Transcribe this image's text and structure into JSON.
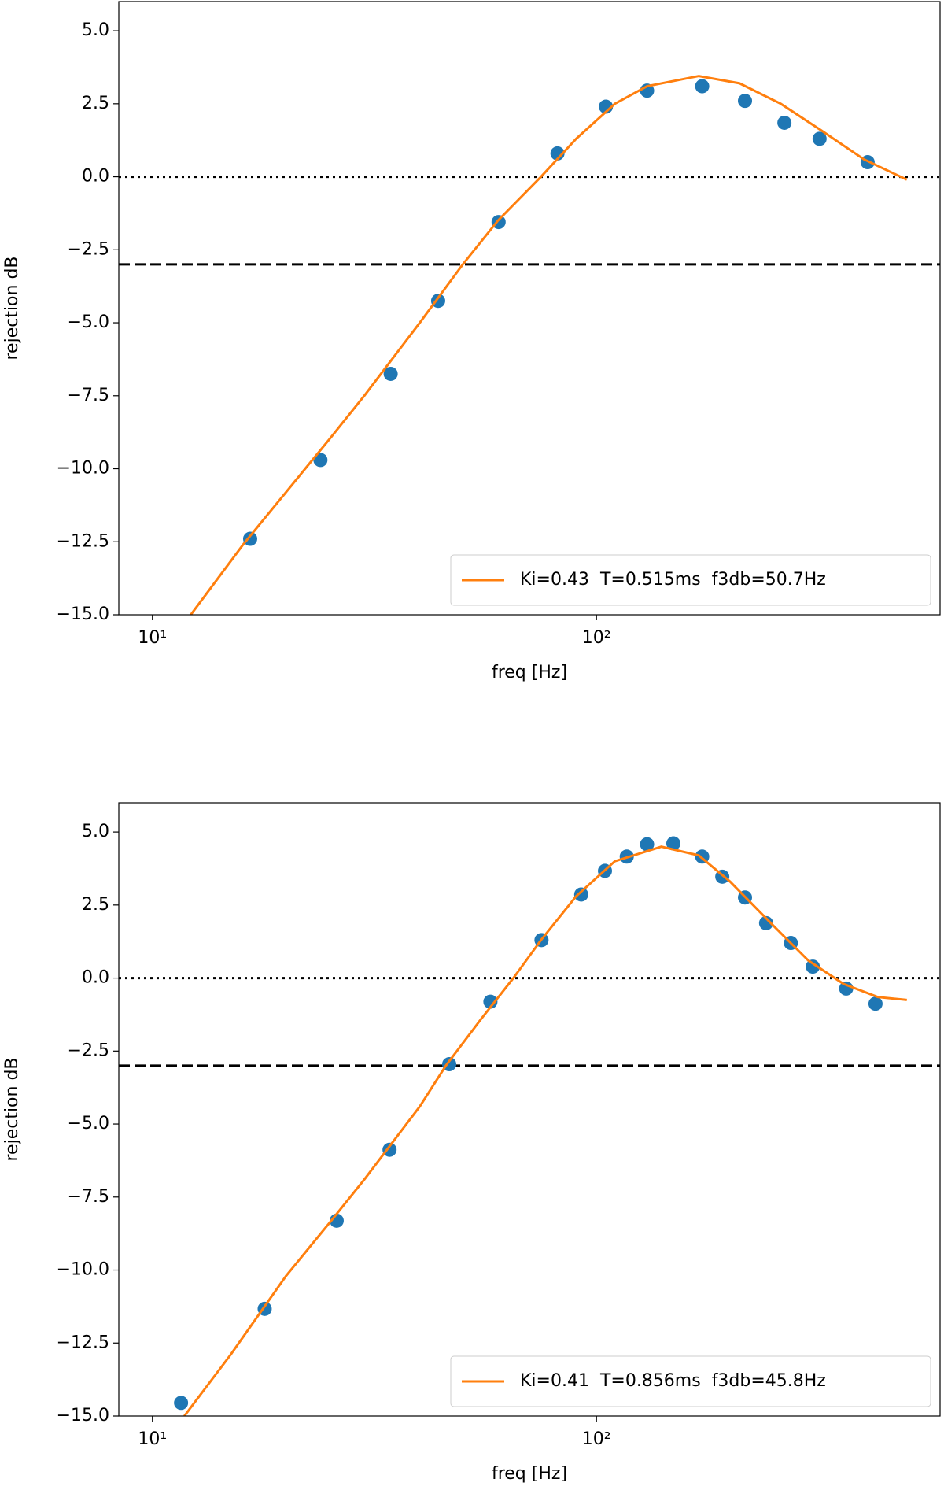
{
  "chart_data": [
    {
      "type": "line",
      "xlabel": "freq [Hz]",
      "ylabel": "rejection dB",
      "xscale": "log",
      "xlim": [
        8.4,
        594
      ],
      "ylim": [
        -15,
        6
      ],
      "xticks": [
        {
          "value": 10,
          "label": "10¹"
        },
        {
          "value": 100,
          "label": "10²"
        }
      ],
      "yticks": [
        {
          "value": -15,
          "label": "−15.0"
        },
        {
          "value": -12.5,
          "label": "−12.5"
        },
        {
          "value": -10,
          "label": "−10.0"
        },
        {
          "value": -7.5,
          "label": "−7.5"
        },
        {
          "value": -5,
          "label": "−5.0"
        },
        {
          "value": -2.5,
          "label": "−2.5"
        },
        {
          "value": 0,
          "label": "0.0"
        },
        {
          "value": 2.5,
          "label": "2.5"
        },
        {
          "value": 5,
          "label": "5.0"
        }
      ],
      "hlines": [
        {
          "value": 0,
          "style": "dotted",
          "color": "#000000"
        },
        {
          "value": -3,
          "style": "dashed",
          "color": "#000000"
        }
      ],
      "legend": "lower right",
      "series": [
        {
          "style": "markers",
          "color": "#1f77b4",
          "x": [
            16.6,
            23.9,
            34.4,
            44.0,
            60.2,
            81.7,
            105,
            130,
            173,
            216,
            265,
            318,
            408
          ],
          "values": [
            -12.4,
            -9.7,
            -6.75,
            -4.25,
            -1.55,
            0.8,
            2.4,
            2.95,
            3.1,
            2.6,
            1.85,
            1.3,
            0.5
          ]
        },
        {
          "style": "line",
          "color": "#ff7f0e",
          "name": "Ki=0.43  T=0.515ms  f3db=50.7Hz",
          "x": [
            12.2,
            16,
            20,
            25,
            30,
            40,
            50,
            60,
            75,
            90,
            110,
            130,
            170,
            210,
            260,
            320,
            400,
            500
          ],
          "values": [
            -15,
            -12.6,
            -10.8,
            -9.0,
            -7.5,
            -5.0,
            -3.0,
            -1.5,
            0.0,
            1.3,
            2.5,
            3.1,
            3.45,
            3.2,
            2.5,
            1.6,
            0.6,
            -0.1
          ]
        }
      ]
    },
    {
      "type": "line",
      "xlabel": "freq [Hz]",
      "ylabel": "rejection dB",
      "xscale": "log",
      "xlim": [
        8.4,
        594
      ],
      "ylim": [
        -15,
        6
      ],
      "xticks": [
        {
          "value": 10,
          "label": "10¹"
        },
        {
          "value": 100,
          "label": "10²"
        }
      ],
      "yticks": [
        {
          "value": -15,
          "label": "−15.0"
        },
        {
          "value": -12.5,
          "label": "−12.5"
        },
        {
          "value": -10,
          "label": "−10.0"
        },
        {
          "value": -7.5,
          "label": "−7.5"
        },
        {
          "value": -5,
          "label": "−5.0"
        },
        {
          "value": -2.5,
          "label": "−2.5"
        },
        {
          "value": 0,
          "label": "0.0"
        },
        {
          "value": 2.5,
          "label": "2.5"
        },
        {
          "value": 5,
          "label": "5.0"
        }
      ],
      "hlines": [
        {
          "value": 0,
          "style": "dotted",
          "color": "#000000"
        },
        {
          "value": -3,
          "style": "dashed",
          "color": "#000000"
        }
      ],
      "legend": "lower right",
      "series": [
        {
          "style": "markers",
          "color": "#1f77b4",
          "x": [
            11.6,
            17.9,
            26.0,
            34.2,
            46.6,
            57.7,
            75.2,
            92.4,
            104.5,
            117,
            130,
            149,
            173,
            192,
            216,
            241,
            274,
            307,
            365,
            425
          ],
          "values": [
            -14.55,
            -11.33,
            -8.31,
            -5.88,
            -2.95,
            -0.81,
            1.3,
            2.86,
            3.67,
            4.16,
            4.58,
            4.61,
            4.16,
            3.47,
            2.76,
            1.88,
            1.2,
            0.39,
            -0.36,
            -0.88
          ]
        },
        {
          "style": "line",
          "color": "#ff7f0e",
          "name": "Ki=0.41  T=0.856ms  f3db=45.8Hz",
          "x": [
            11.8,
            15,
            20,
            25,
            30,
            40,
            45.8,
            55,
            65,
            75,
            90,
            110,
            140,
            170,
            200,
            250,
            300,
            360,
            430,
            500
          ],
          "values": [
            -15,
            -12.9,
            -10.2,
            -8.4,
            -6.9,
            -4.4,
            -3,
            -1.4,
            0.0,
            1.3,
            2.8,
            4.0,
            4.5,
            4.2,
            3.3,
            1.8,
            0.6,
            -0.2,
            -0.65,
            -0.75
          ]
        }
      ]
    }
  ]
}
